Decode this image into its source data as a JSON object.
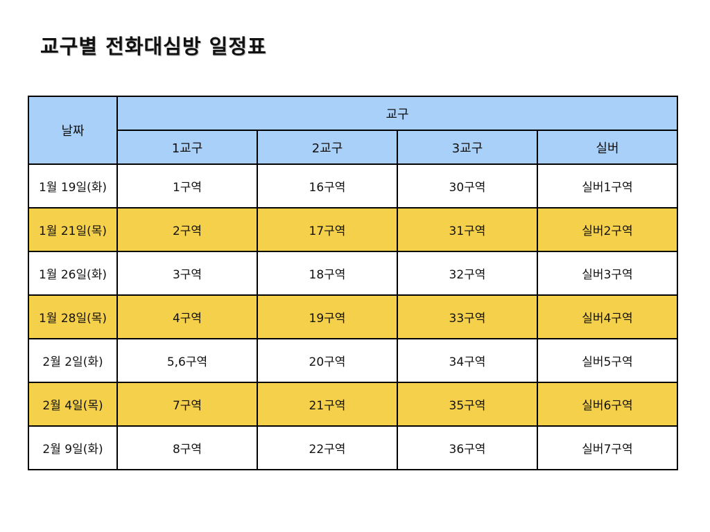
{
  "page": {
    "title": "교구별 전화대심방 일정표"
  },
  "table": {
    "date_header": "날짜",
    "group_header": "교구",
    "columns": [
      "1교구",
      "2교구",
      "3교구",
      "실버"
    ],
    "rows": [
      {
        "date": "1월 19일(화)",
        "cells": [
          "1구역",
          "16구역",
          "30구역",
          "실버1구역"
        ],
        "highlight": false
      },
      {
        "date": "1월 21일(목)",
        "cells": [
          "2구역",
          "17구역",
          "31구역",
          "실버2구역"
        ],
        "highlight": true
      },
      {
        "date": "1월 26일(화)",
        "cells": [
          "3구역",
          "18구역",
          "32구역",
          "실버3구역"
        ],
        "highlight": false
      },
      {
        "date": "1월 28일(목)",
        "cells": [
          "4구역",
          "19구역",
          "33구역",
          "실버4구역"
        ],
        "highlight": true
      },
      {
        "date": "2월 2일(화)",
        "cells": [
          "5,6구역",
          "20구역",
          "34구역",
          "실버5구역"
        ],
        "highlight": false
      },
      {
        "date": "2월 4일(목)",
        "cells": [
          "7구역",
          "21구역",
          "35구역",
          "실버6구역"
        ],
        "highlight": true
      },
      {
        "date": "2월 9일(화)",
        "cells": [
          "8구역",
          "22구역",
          "36구역",
          "실버7구역"
        ],
        "highlight": false
      }
    ]
  },
  "colors": {
    "header_bg": "#a9d0f8",
    "highlight_bg": "#f5d04a",
    "border": "#000000"
  }
}
